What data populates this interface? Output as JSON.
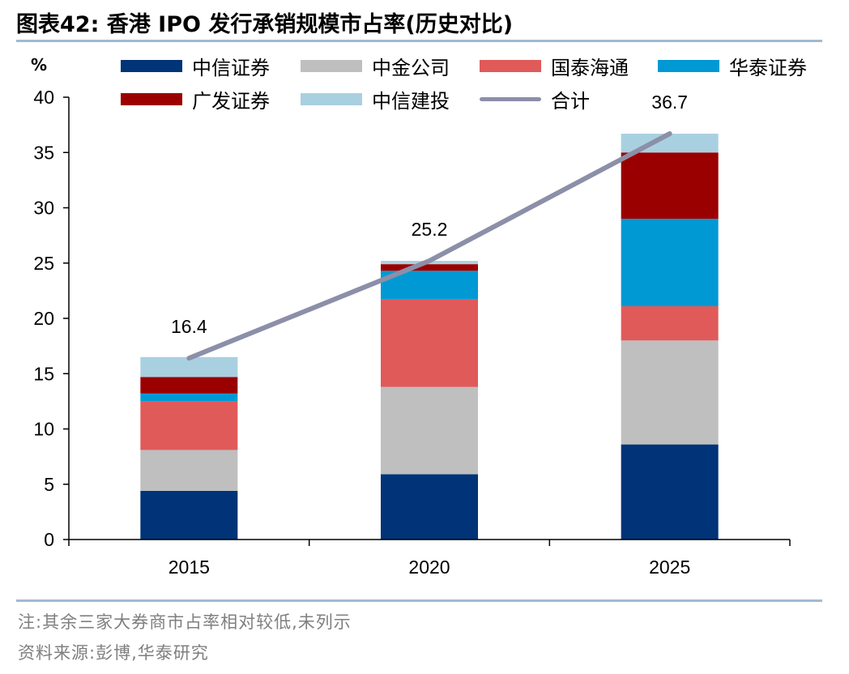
{
  "title": "图表42:  香港 IPO 发行承销规模市占率(历史对比)",
  "footnote": "注:其余三家大券商市占率相对较低,未列示",
  "source": "资料来源:彭博,华泰研究",
  "colors": {
    "rule": "#a2b9d4",
    "axis": "#000000"
  },
  "chart_data": {
    "type": "bar",
    "stacked": true,
    "unit_label": "%",
    "categories": [
      "2015",
      "2020",
      "2025"
    ],
    "ylim": [
      0,
      40
    ],
    "yticks": [
      0,
      5,
      10,
      15,
      20,
      25,
      30,
      35,
      40
    ],
    "series": [
      {
        "name": "中信证券",
        "color": "#003377",
        "values": [
          4.4,
          5.9,
          8.6
        ]
      },
      {
        "name": "中金公司",
        "color": "#bfbfbf",
        "values": [
          3.7,
          7.9,
          9.4
        ]
      },
      {
        "name": "国泰海通",
        "color": "#e05a5a",
        "values": [
          4.4,
          7.9,
          3.1
        ]
      },
      {
        "name": "华泰证券",
        "color": "#0099d4",
        "values": [
          0.7,
          2.6,
          7.9
        ]
      },
      {
        "name": "广发证券",
        "color": "#9b0000",
        "values": [
          1.5,
          0.6,
          6.0
        ]
      },
      {
        "name": "中信建投",
        "color": "#a9d0e0",
        "values": [
          1.8,
          0.3,
          1.7
        ]
      }
    ],
    "total": {
      "name": "合计",
      "color": "#8c8fa8",
      "values": [
        16.4,
        25.2,
        36.7
      ],
      "labels": [
        "16.4",
        "25.2",
        "36.7"
      ]
    },
    "legend_position": "top"
  }
}
